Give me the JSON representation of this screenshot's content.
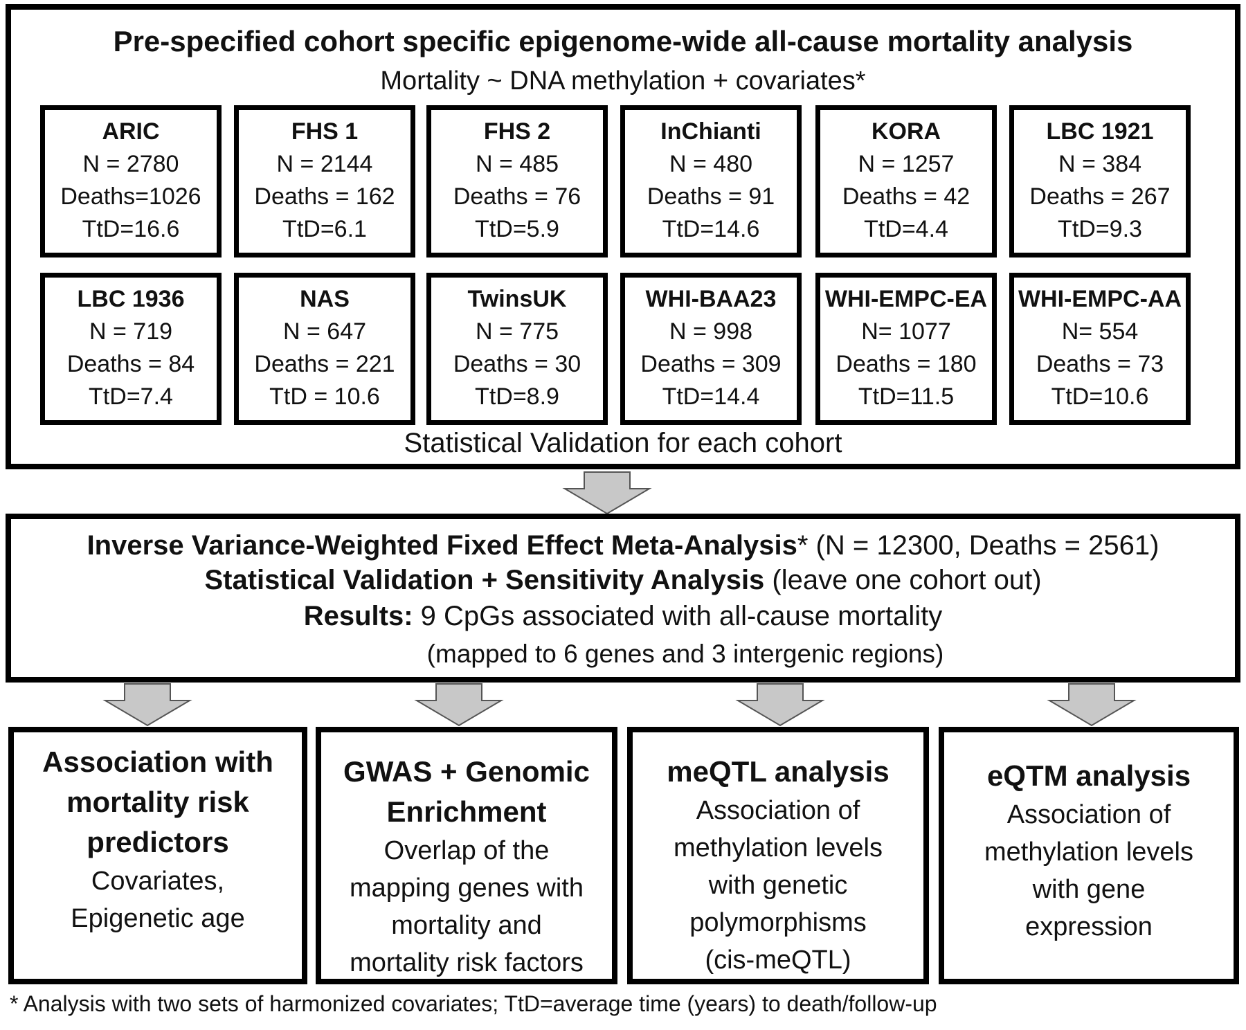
{
  "top": {
    "title": "Pre-specified cohort specific epigenome-wide all-cause mortality analysis",
    "subtitle": "Mortality ~ DNA methylation + covariates*",
    "footer": "Statistical Validation for each cohort",
    "cohorts": [
      {
        "name": "ARIC",
        "n": "N = 2780",
        "deaths": "Deaths=1026",
        "ttd": "TtD=16.6"
      },
      {
        "name": "FHS 1",
        "n": "N = 2144",
        "deaths": "Deaths = 162",
        "ttd": "TtD=6.1"
      },
      {
        "name": "FHS 2",
        "n": "N = 485",
        "deaths": "Deaths = 76",
        "ttd": "TtD=5.9"
      },
      {
        "name": "InChianti",
        "n": "N = 480",
        "deaths": "Deaths = 91",
        "ttd": "TtD=14.6"
      },
      {
        "name": "KORA",
        "n": "N = 1257",
        "deaths": "Deaths = 42",
        "ttd": "TtD=4.4"
      },
      {
        "name": "LBC 1921",
        "n": "N = 384",
        "deaths": "Deaths = 267",
        "ttd": "TtD=9.3"
      },
      {
        "name": "LBC 1936",
        "n": "N = 719",
        "deaths": "Deaths = 84",
        "ttd": "TtD=7.4"
      },
      {
        "name": "NAS",
        "n": "N = 647",
        "deaths": "Deaths = 221",
        "ttd": "TtD = 10.6"
      },
      {
        "name": "TwinsUK",
        "n": "N = 775",
        "deaths": "Deaths = 30",
        "ttd": "TtD=8.9"
      },
      {
        "name": "WHI-BAA23",
        "n": "N = 998",
        "deaths": "Deaths = 309",
        "ttd": "TtD=14.4"
      },
      {
        "name": "WHI-EMPC-EA",
        "n": "N= 1077",
        "deaths": "Deaths = 180",
        "ttd": "TtD=11.5"
      },
      {
        "name": "WHI-EMPC-AA",
        "n": "N= 554",
        "deaths": "Deaths = 73",
        "ttd": "TtD=10.6"
      }
    ]
  },
  "meta": {
    "line1_bold": "Inverse Variance-Weighted Fixed Effect Meta-Analysis",
    "line1_rest": "* (N = 12300, Deaths = 2561)",
    "line2_bold": "Statistical Validation + Sensitivity Analysis",
    "line2_rest": " (leave one cohort out)",
    "line3_bold": "Results:",
    "line3_rest": " 9 CpGs associated with all-cause mortality",
    "line4": "(mapped to 6 genes and 3 intergenic regions)"
  },
  "bottom": [
    {
      "title": [
        "Association with",
        "mortality risk",
        "predictors"
      ],
      "body": [
        "Covariates,",
        "Epigenetic age"
      ]
    },
    {
      "title": [
        "GWAS + Genomic",
        "Enrichment"
      ],
      "body": [
        "Overlap of the",
        "mapping genes with",
        "mortality and",
        "mortality risk factors"
      ]
    },
    {
      "title": [
        "meQTL analysis"
      ],
      "body": [
        "Association of",
        "methylation levels",
        "with genetic",
        "polymorphisms",
        "(cis-meQTL)"
      ]
    },
    {
      "title": [
        "eQTM analysis"
      ],
      "body": [
        "Association of",
        "methylation levels",
        "with gene",
        "expression"
      ]
    }
  ],
  "footnote": "* Analysis with two sets of harmonized covariates; TtD=average time (years) to death/follow-up",
  "colors": {
    "arrow_fill": "#c8c8c8",
    "border": "#000000"
  }
}
